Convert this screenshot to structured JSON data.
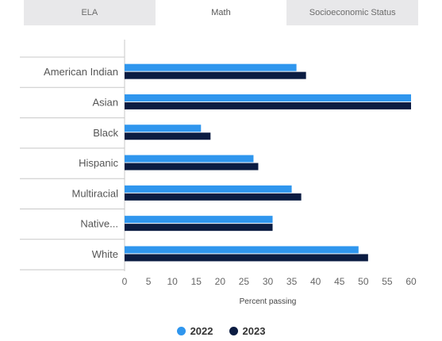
{
  "tabs": [
    {
      "label": "ELA",
      "active": false
    },
    {
      "label": "Math",
      "active": true
    },
    {
      "label": "Socioeconomic Status",
      "active": false
    }
  ],
  "colors": {
    "series_2022": "#2f96ee",
    "series_2023": "#0b1c42",
    "grid": "#c8c8c8"
  },
  "chart_data": {
    "type": "bar",
    "orientation": "horizontal",
    "categories": [
      "American Indian",
      "Asian",
      "Black",
      "Hispanic",
      "Multiracial",
      "Native...",
      "White"
    ],
    "series": [
      {
        "name": "2022",
        "values": [
          36,
          60,
          16,
          27,
          35,
          31,
          49
        ]
      },
      {
        "name": "2023",
        "values": [
          38,
          60,
          18,
          28,
          37,
          31,
          51
        ]
      }
    ],
    "xlabel": "Percent passing",
    "ylabel": "",
    "xlim": [
      0,
      60
    ],
    "xticks": [
      "0",
      "5",
      "10",
      "15",
      "20",
      "25",
      "30",
      "35",
      "40",
      "45",
      "50",
      "55",
      "60"
    ],
    "grid": "horizontal separators",
    "legend_position": "bottom"
  }
}
